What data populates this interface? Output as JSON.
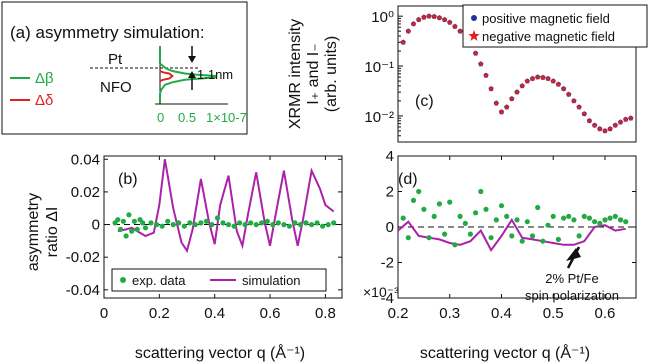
{
  "chart_data": [
    {
      "id": "a",
      "panel_label": "(a)",
      "title": "asymmetry simulation:",
      "type": "line",
      "layers": [
        "Pt",
        "NFO"
      ],
      "annotation": "1.1nm",
      "legend": [
        {
          "label": "Δβ",
          "color": "#22aa44"
        },
        {
          "label": "Δδ",
          "color": "#dd2222"
        }
      ],
      "x_ticks": [
        "0",
        "0.5",
        "1"
      ],
      "x_exponent": "×10-7",
      "series": [
        {
          "key": "dbeta",
          "color": "#22aa44",
          "points": [
            [
              0,
              0
            ],
            [
              0,
              14
            ],
            [
              0.05,
              16
            ],
            [
              0.1,
              18
            ],
            [
              0.2,
              20
            ],
            [
              0.4,
              22
            ],
            [
              0.6,
              23
            ],
            [
              0.9,
              24
            ],
            [
              0.9,
              25
            ],
            [
              0.4,
              27
            ],
            [
              0.2,
              29
            ],
            [
              0.08,
              31
            ],
            [
              0.02,
              35
            ],
            [
              0,
              38
            ],
            [
              0,
              46
            ]
          ]
        },
        {
          "key": "ddelta",
          "color": "#dd2222",
          "points": [
            [
              0,
              20
            ],
            [
              0.05,
              21
            ],
            [
              0.15,
              22
            ],
            [
              0.2,
              24
            ],
            [
              0.15,
              26
            ],
            [
              0.05,
              27
            ],
            [
              0,
              28
            ]
          ]
        }
      ]
    },
    {
      "id": "b",
      "panel_label": "(b)",
      "type": "line",
      "ylabel_lines": [
        "asymmetry",
        "ratio ΔI"
      ],
      "xlabel": "scattering vector q (Å⁻¹)",
      "xlim": [
        0,
        0.86
      ],
      "ylim": [
        -0.045,
        0.042
      ],
      "x_ticks": [
        0,
        0.2,
        0.4,
        0.6,
        0.8
      ],
      "y_ticks": [
        -0.04,
        -0.02,
        0,
        0.02,
        0.04
      ],
      "y_tick_labels": [
        "-0.04",
        "-0.02",
        "0",
        "0.02",
        "0.04"
      ],
      "legend": [
        {
          "label": "exp. data",
          "color": "#22aa44",
          "marker": "dot"
        },
        {
          "label": "simulation",
          "color": "#aa22aa",
          "marker": "line"
        }
      ],
      "simulation": {
        "color": "#aa22aa",
        "x": [
          0.05,
          0.08,
          0.1,
          0.12,
          0.15,
          0.18,
          0.2,
          0.22,
          0.25,
          0.28,
          0.3,
          0.32,
          0.35,
          0.38,
          0.4,
          0.42,
          0.45,
          0.48,
          0.5,
          0.52,
          0.55,
          0.58,
          0.6,
          0.62,
          0.65,
          0.68,
          0.7,
          0.72,
          0.75,
          0.78,
          0.8,
          0.83
        ],
        "y": [
          -0.004,
          -0.003,
          -0.002,
          -0.004,
          -0.007,
          -0.005,
          0.012,
          0.04,
          0.01,
          -0.011,
          -0.016,
          -0.003,
          0.028,
          0.001,
          -0.012,
          0.012,
          0.03,
          -0.004,
          -0.013,
          0.006,
          0.032,
          0.002,
          -0.013,
          0.006,
          0.033,
          0.003,
          -0.013,
          0.004,
          0.033,
          0.022,
          0.012,
          0.008
        ]
      },
      "exp_data": {
        "color": "#22aa44",
        "x": [
          0.04,
          0.05,
          0.06,
          0.07,
          0.08,
          0.09,
          0.1,
          0.11,
          0.12,
          0.13,
          0.14,
          0.15,
          0.17,
          0.19,
          0.21,
          0.23,
          0.25,
          0.27,
          0.29,
          0.31,
          0.33,
          0.35,
          0.37,
          0.39,
          0.41,
          0.43,
          0.45,
          0.47,
          0.49,
          0.51,
          0.53,
          0.55,
          0.57,
          0.59,
          0.61,
          0.63,
          0.65,
          0.67,
          0.69,
          0.71,
          0.73,
          0.75,
          0.77,
          0.79,
          0.81,
          0.83
        ],
        "y": [
          0.001,
          0.003,
          -0.003,
          0.002,
          -0.007,
          0.006,
          -0.004,
          0.002,
          -0.003,
          0.003,
          0.001,
          -0.002,
          0.001,
          0,
          -0.001,
          0.002,
          0,
          0.001,
          -0.001,
          0.001,
          0,
          0.001,
          0.002,
          0,
          0.004,
          0.001,
          0,
          -0.001,
          0.001,
          0,
          0.001,
          0,
          0.001,
          0.002,
          0,
          0.001,
          0,
          -0.001,
          0.001,
          0,
          0.001,
          0,
          0.001,
          -0.001,
          0,
          0.001
        ]
      }
    },
    {
      "id": "c",
      "panel_label": "(c)",
      "type": "scatter",
      "ylabel_lines": [
        "XRMR intensity",
        "I₊ and I₋",
        "(arb. units)"
      ],
      "log_y": true,
      "xlim": [
        0.2,
        0.66
      ],
      "ylim": [
        0.003,
        1.6
      ],
      "y_tick_labels": [
        "10⁰",
        "10⁻¹",
        "10⁻²"
      ],
      "y_ticks": [
        1,
        0.1,
        0.01
      ],
      "legend": [
        {
          "label": "positive magnetic field",
          "color": "#223399",
          "marker": "dot"
        },
        {
          "label": "negative magnetic field",
          "color": "#dd2222",
          "marker": "star"
        }
      ],
      "series": [
        {
          "name": "positive magnetic field",
          "color": "#223399",
          "x": [
            0.21,
            0.22,
            0.23,
            0.24,
            0.25,
            0.26,
            0.27,
            0.28,
            0.29,
            0.3,
            0.31,
            0.32,
            0.33,
            0.34,
            0.35,
            0.36,
            0.37,
            0.38,
            0.39,
            0.4,
            0.41,
            0.42,
            0.43,
            0.44,
            0.45,
            0.46,
            0.47,
            0.48,
            0.49,
            0.5,
            0.51,
            0.52,
            0.53,
            0.54,
            0.55,
            0.56,
            0.57,
            0.58,
            0.59,
            0.6,
            0.61,
            0.62,
            0.63,
            0.64,
            0.65
          ],
          "y": [
            0.3,
            0.5,
            0.7,
            0.85,
            0.95,
            1.0,
            0.98,
            0.93,
            0.85,
            0.75,
            0.62,
            0.5,
            0.38,
            0.27,
            0.18,
            0.11,
            0.065,
            0.035,
            0.018,
            0.012,
            0.015,
            0.022,
            0.03,
            0.04,
            0.05,
            0.056,
            0.06,
            0.059,
            0.056,
            0.05,
            0.043,
            0.035,
            0.027,
            0.02,
            0.015,
            0.011,
            0.008,
            0.0065,
            0.0055,
            0.005,
            0.0055,
            0.0065,
            0.0075,
            0.0085,
            0.009
          ]
        },
        {
          "name": "negative magnetic field",
          "color": "#dd2222",
          "x": [
            0.21,
            0.22,
            0.23,
            0.24,
            0.25,
            0.26,
            0.27,
            0.28,
            0.29,
            0.3,
            0.31,
            0.32,
            0.33,
            0.34,
            0.35,
            0.36,
            0.37,
            0.38,
            0.39,
            0.4,
            0.41,
            0.42,
            0.43,
            0.44,
            0.45,
            0.46,
            0.47,
            0.48,
            0.49,
            0.5,
            0.51,
            0.52,
            0.53,
            0.54,
            0.55,
            0.56,
            0.57,
            0.58,
            0.59,
            0.6,
            0.61,
            0.62,
            0.63,
            0.64,
            0.65
          ],
          "y": [
            0.3,
            0.5,
            0.7,
            0.85,
            0.95,
            1.0,
            0.98,
            0.93,
            0.85,
            0.75,
            0.62,
            0.5,
            0.38,
            0.27,
            0.18,
            0.11,
            0.065,
            0.035,
            0.018,
            0.012,
            0.015,
            0.022,
            0.03,
            0.04,
            0.05,
            0.056,
            0.06,
            0.059,
            0.056,
            0.05,
            0.043,
            0.035,
            0.027,
            0.02,
            0.015,
            0.011,
            0.008,
            0.0065,
            0.0055,
            0.005,
            0.0055,
            0.0065,
            0.0075,
            0.0085,
            0.009
          ]
        }
      ]
    },
    {
      "id": "d",
      "panel_label": "(d)",
      "type": "line",
      "xlabel": "scattering vector q (Å⁻¹)",
      "xlim": [
        0.2,
        0.66
      ],
      "ylim": [
        -4,
        4
      ],
      "x_ticks": [
        0.2,
        0.3,
        0.4,
        0.5,
        0.6
      ],
      "y_ticks": [
        -4,
        -2,
        0,
        2,
        4
      ],
      "y_tick_labels": [
        "-4",
        "-2",
        "0",
        "2",
        "4"
      ],
      "y_exponent": "×10⁻³",
      "annotation_lines": [
        "2% Pt/Fe",
        "spin polarization"
      ],
      "simulation": {
        "color": "#aa22aa",
        "x": [
          0.2,
          0.22,
          0.24,
          0.26,
          0.28,
          0.3,
          0.32,
          0.34,
          0.36,
          0.38,
          0.4,
          0.42,
          0.44,
          0.46,
          0.48,
          0.5,
          0.52,
          0.54,
          0.56,
          0.58,
          0.6,
          0.62,
          0.64
        ],
        "y": [
          -0.2,
          0.3,
          -0.5,
          -0.6,
          -0.7,
          -0.9,
          -1.0,
          -0.8,
          -0.2,
          -1.3,
          -0.5,
          0.4,
          -0.6,
          -0.7,
          -0.8,
          -0.9,
          -1.0,
          -1.0,
          -0.8,
          0.0,
          0.1,
          -0.2,
          -0.1
        ]
      },
      "exp_data": {
        "color": "#22aa44",
        "x": [
          0.21,
          0.22,
          0.23,
          0.24,
          0.25,
          0.26,
          0.27,
          0.28,
          0.29,
          0.3,
          0.31,
          0.32,
          0.33,
          0.34,
          0.35,
          0.36,
          0.37,
          0.38,
          0.39,
          0.4,
          0.41,
          0.42,
          0.43,
          0.44,
          0.45,
          0.46,
          0.47,
          0.48,
          0.49,
          0.5,
          0.51,
          0.52,
          0.53,
          0.54,
          0.55,
          0.56,
          0.57,
          0.58,
          0.59,
          0.6,
          0.61,
          0.62,
          0.63,
          0.64
        ],
        "y": [
          0.5,
          -0.6,
          1.5,
          2.0,
          1.0,
          -0.6,
          0.6,
          1.3,
          -0.4,
          1.4,
          -1.0,
          0.6,
          0.2,
          -0.4,
          0.8,
          2.0,
          1.0,
          -0.6,
          0.4,
          1.2,
          0.6,
          -0.5,
          0.4,
          -0.8,
          0.3,
          -0.5,
          1.1,
          -0.8,
          0.1,
          0.6,
          -0.7,
          0.5,
          0.6,
          0.4,
          -0.5,
          0.6,
          0.5,
          0.3,
          0.2,
          0.4,
          0.5,
          0.6,
          0.4,
          0.3
        ]
      }
    }
  ]
}
